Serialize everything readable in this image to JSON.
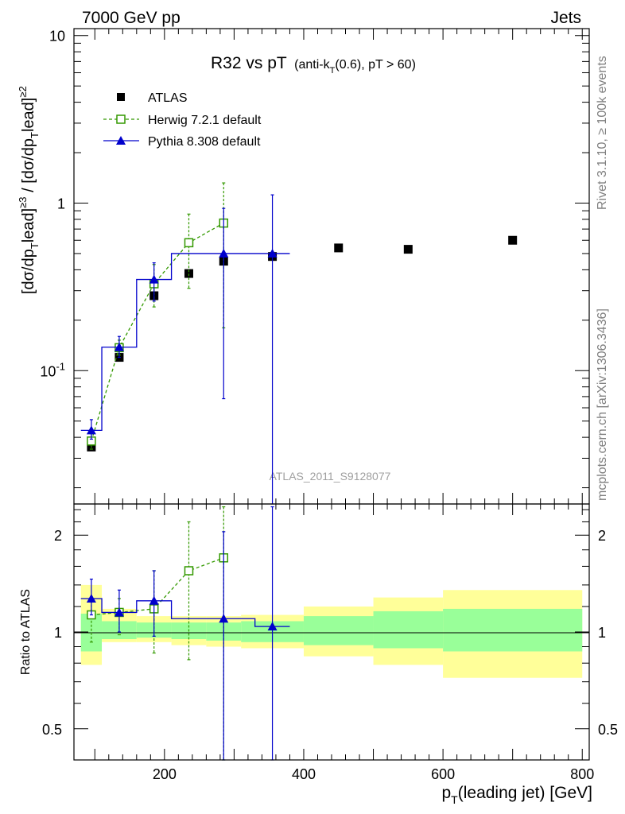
{
  "header": {
    "left": "7000 GeV pp",
    "right": "Jets"
  },
  "side_labels": {
    "rivet": "Rivet 3.1.10, ≥ 100k events",
    "mcplots": "mcplots.cern.ch [arXiv:1306.3436]"
  },
  "title": {
    "main": "R32 vs pT",
    "sub": "(anti-k",
    "sub_sub": "T",
    "sub_tail": "(0.6), pT > 60)"
  },
  "watermark": "ATLAS_2011_S9128077",
  "chart_data": [
    {
      "type": "scatter",
      "panel": "main",
      "ylabel": "[dσ/dp_Tlead]^{≥3} / [dσ/dp_Tlead]^{≥2}",
      "yscale": "log",
      "ylim": [
        0.016,
        11
      ],
      "xlim": [
        70,
        810
      ],
      "y_tick_labels": [
        "10",
        "1",
        "10^-1"
      ],
      "legend_position": "top-left",
      "series": [
        {
          "name": "ATLAS",
          "marker": "square-filled",
          "color": "#000000",
          "x": [
            95,
            135,
            185,
            235,
            285,
            355,
            450,
            550,
            700
          ],
          "y": [
            0.035,
            0.12,
            0.28,
            0.38,
            0.45,
            0.48,
            0.54,
            0.53,
            0.6
          ]
        },
        {
          "name": "Herwig 7.2.1 default",
          "marker": "square-open",
          "line": "dashed",
          "color": "#339900",
          "x": [
            95,
            135,
            185,
            235,
            285
          ],
          "y": [
            0.038,
            0.137,
            0.33,
            0.58,
            0.76
          ],
          "err_low": [
            0.034,
            0.124,
            0.24,
            0.31,
            0.18
          ],
          "err_high": [
            0.042,
            0.152,
            0.43,
            0.86,
            1.32
          ]
        },
        {
          "name": "Pythia 8.308 default",
          "marker": "triangle-filled",
          "line": "solid",
          "color": "#0000cc",
          "x": [
            95,
            135,
            185,
            285,
            355
          ],
          "y": [
            0.044,
            0.138,
            0.35,
            0.5,
            0.5
          ],
          "step_x": [
            [
              80,
              110
            ],
            [
              110,
              160
            ],
            [
              160,
              210
            ],
            [
              210,
              330
            ],
            [
              330,
              380
            ]
          ],
          "err_low": [
            0.039,
            0.12,
            0.26,
            0.068,
            0.001
          ],
          "err_high": [
            0.051,
            0.16,
            0.44,
            0.93,
            1.12
          ]
        }
      ]
    },
    {
      "type": "scatter",
      "panel": "ratio",
      "ylabel": "Ratio to ATLAS",
      "xlabel": "p_T(leading jet) [GeV]",
      "yscale": "log",
      "ylim": [
        0.4,
        2.5
      ],
      "xlim": [
        70,
        810
      ],
      "y_tick_labels": [
        "2",
        "1",
        "0.5"
      ],
      "x_tick_labels": [
        "200",
        "400",
        "600",
        "800"
      ],
      "bands": {
        "edges": [
          80,
          110,
          160,
          210,
          260,
          310,
          400,
          500,
          600,
          800
        ],
        "green_low": [
          0.87,
          0.95,
          0.96,
          0.95,
          0.94,
          0.93,
          0.91,
          0.89,
          0.87
        ],
        "green_high": [
          1.14,
          1.08,
          1.07,
          1.07,
          1.07,
          1.08,
          1.12,
          1.16,
          1.18
        ],
        "yellow_low": [
          0.79,
          0.93,
          0.93,
          0.91,
          0.9,
          0.89,
          0.84,
          0.79,
          0.72
        ],
        "yellow_high": [
          1.4,
          1.18,
          1.12,
          1.12,
          1.12,
          1.13,
          1.2,
          1.28,
          1.35
        ]
      },
      "series": [
        {
          "name": "Herwig 7.2.1 default",
          "marker": "square-open",
          "line": "dashed",
          "color": "#339900",
          "x": [
            95,
            135,
            185,
            235,
            285
          ],
          "y": [
            1.13,
            1.15,
            1.18,
            1.55,
            1.7
          ],
          "err_low": [
            0.93,
            0.98,
            0.86,
            0.82,
            0.3
          ],
          "err_high": [
            1.25,
            1.27,
            1.55,
            2.2,
            2.45
          ]
        },
        {
          "name": "Pythia 8.308 default",
          "marker": "triangle-filled",
          "line": "solid",
          "color": "#0000cc",
          "x": [
            95,
            135,
            185,
            285,
            355
          ],
          "y": [
            1.27,
            1.15,
            1.25,
            1.1,
            1.04
          ],
          "step_x": [
            [
              80,
              110
            ],
            [
              110,
              160
            ],
            [
              160,
              210
            ],
            [
              210,
              330
            ],
            [
              330,
              380
            ]
          ],
          "err_low": [
            1.13,
            1.0,
            0.97,
            0.3,
            0.3
          ],
          "err_high": [
            1.46,
            1.35,
            1.55,
            2.05,
            2.45
          ]
        }
      ]
    }
  ]
}
